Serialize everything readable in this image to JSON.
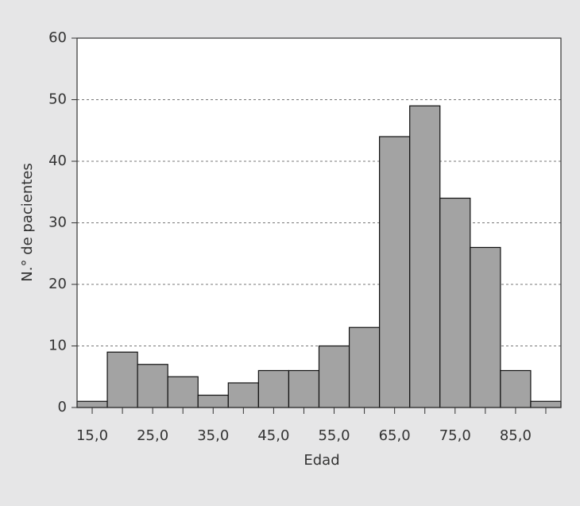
{
  "chart_data": {
    "type": "histogram",
    "xlabel": "Edad",
    "ylabel": "N.° de pacientes",
    "bins": [
      12.5,
      17.5,
      22.5,
      27.5,
      32.5,
      37.5,
      42.5,
      47.5,
      52.5,
      57.5,
      62.5,
      67.5,
      72.5,
      77.5,
      82.5,
      87.5,
      92.5
    ],
    "counts": [
      1,
      9,
      7,
      5,
      2,
      4,
      6,
      6,
      10,
      13,
      44,
      49,
      34,
      26,
      6,
      1
    ],
    "color": "#a3a3a3",
    "xlim": [
      12.5,
      92.5
    ],
    "xticks": [
      {
        "value": 15,
        "label": "15,0"
      },
      {
        "value": 20,
        "label": null
      },
      {
        "value": 25,
        "label": "25,0"
      },
      {
        "value": 30,
        "label": null
      },
      {
        "value": 35,
        "label": "35,0"
      },
      {
        "value": 40,
        "label": null
      },
      {
        "value": 45,
        "label": "45,0"
      },
      {
        "value": 50,
        "label": null
      },
      {
        "value": 55,
        "label": "55,0"
      },
      {
        "value": 60,
        "label": null
      },
      {
        "value": 65,
        "label": "65,0"
      },
      {
        "value": 70,
        "label": null
      },
      {
        "value": 75,
        "label": "75,0"
      },
      {
        "value": 80,
        "label": null
      },
      {
        "value": 85,
        "label": "85,0"
      },
      {
        "value": 90,
        "label": null
      }
    ],
    "ylim": [
      0,
      60
    ],
    "yticks": [
      0,
      10,
      20,
      30,
      40,
      50,
      60
    ],
    "grid": true
  }
}
